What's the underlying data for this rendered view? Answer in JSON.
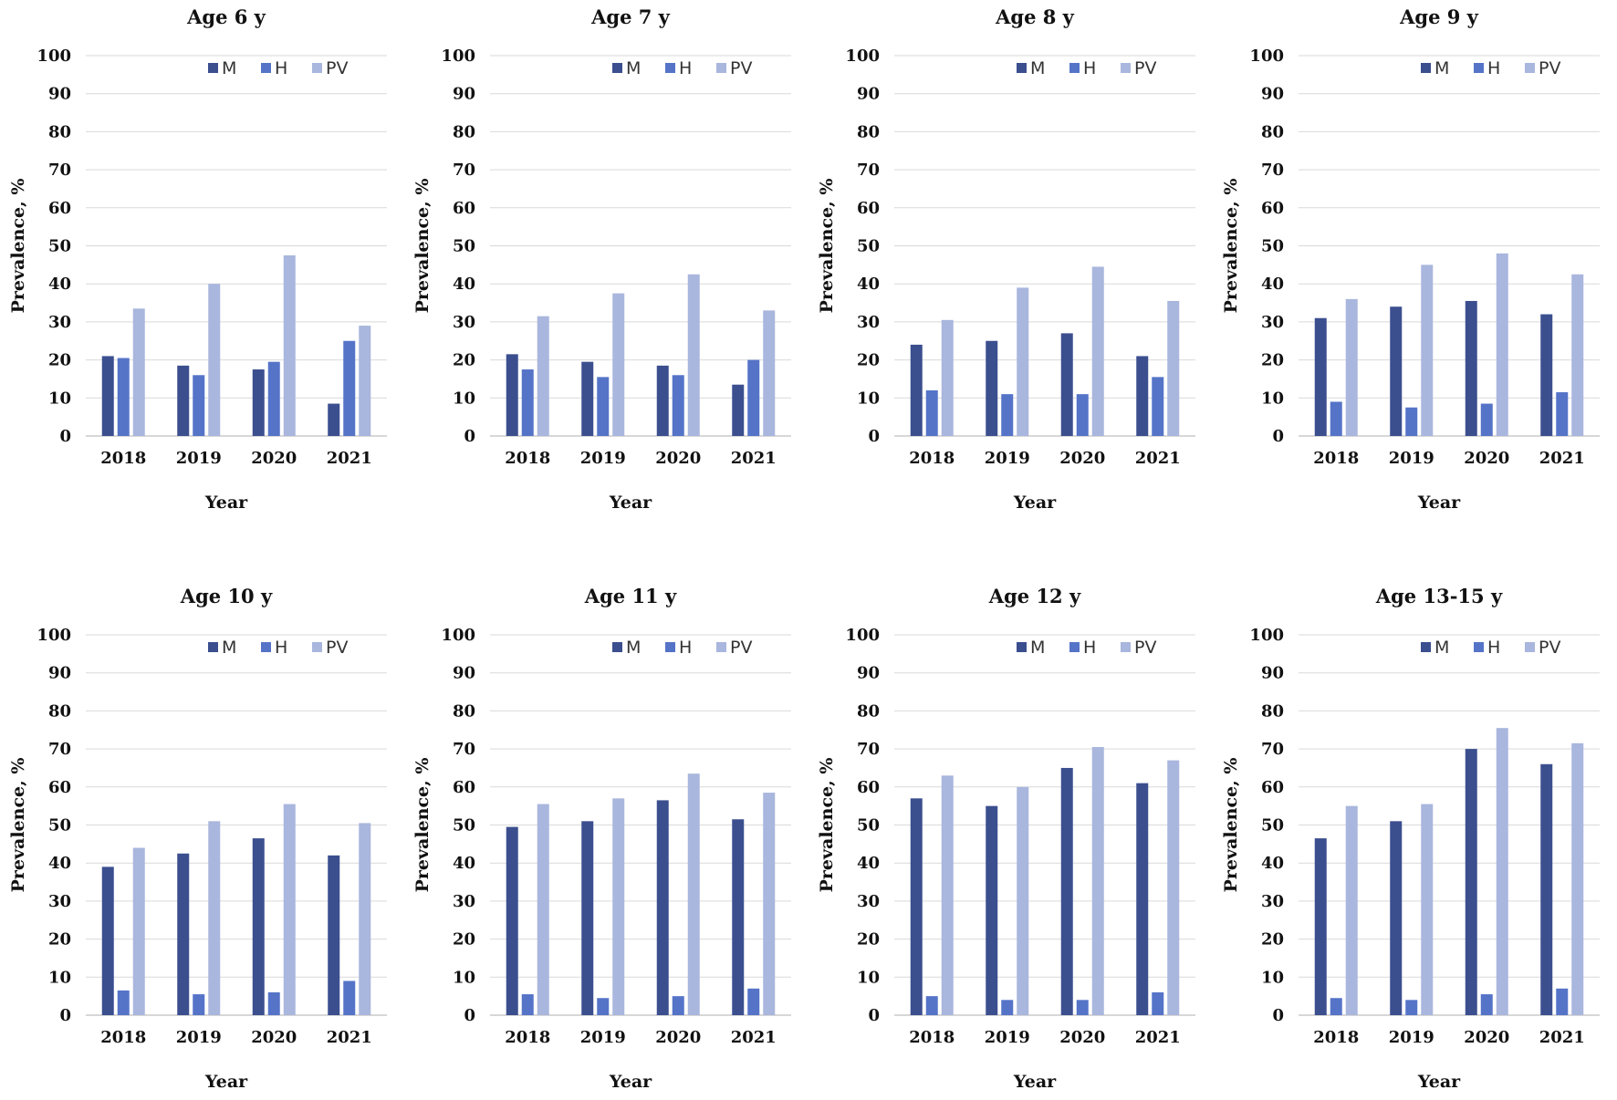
{
  "chart_data": [
    {
      "type": "bar",
      "title": "Age 6 y",
      "categories": [
        "2018",
        "2019",
        "2020",
        "2021"
      ],
      "series": [
        {
          "name": "M",
          "values": [
            21,
            18.5,
            17.5,
            8.5
          ]
        },
        {
          "name": "H",
          "values": [
            20.5,
            16,
            19.5,
            25
          ]
        },
        {
          "name": "PV",
          "values": [
            33.5,
            40,
            47.5,
            29
          ]
        }
      ],
      "xlabel": "Year",
      "ylabel": "Prevalence, %",
      "ylim": [
        0,
        100
      ],
      "yticks": [
        "0",
        "10",
        "20",
        "30",
        "40",
        "50",
        "60",
        "70",
        "80",
        "90",
        "100"
      ],
      "grid": true,
      "legend": "top-right"
    },
    {
      "type": "bar",
      "title": "Age 7 y",
      "categories": [
        "2018",
        "2019",
        "2020",
        "2021"
      ],
      "series": [
        {
          "name": "M",
          "values": [
            21.5,
            19.5,
            18.5,
            13.5
          ]
        },
        {
          "name": "H",
          "values": [
            17.5,
            15.5,
            16,
            20
          ]
        },
        {
          "name": "PV",
          "values": [
            31.5,
            37.5,
            42.5,
            33
          ]
        }
      ],
      "xlabel": "Year",
      "ylabel": "Prevalence, %",
      "ylim": [
        0,
        100
      ],
      "yticks": [
        "0",
        "10",
        "20",
        "30",
        "40",
        "50",
        "60",
        "70",
        "80",
        "90",
        "100"
      ],
      "grid": true,
      "legend": "top-right"
    },
    {
      "type": "bar",
      "title": "Age 8 y",
      "categories": [
        "2018",
        "2019",
        "2020",
        "2021"
      ],
      "series": [
        {
          "name": "M",
          "values": [
            24,
            25,
            27,
            21
          ]
        },
        {
          "name": "H",
          "values": [
            12,
            11,
            11,
            15.5
          ]
        },
        {
          "name": "PV",
          "values": [
            30.5,
            39,
            44.5,
            35.5
          ]
        }
      ],
      "xlabel": "Year",
      "ylabel": "Prevalence, %",
      "ylim": [
        0,
        100
      ],
      "yticks": [
        "0",
        "10",
        "20",
        "30",
        "40",
        "50",
        "60",
        "70",
        "80",
        "90",
        "100"
      ],
      "grid": true,
      "legend": "top-right"
    },
    {
      "type": "bar",
      "title": "Age 9 y",
      "categories": [
        "2018",
        "2019",
        "2020",
        "2021"
      ],
      "series": [
        {
          "name": "M",
          "values": [
            31,
            34,
            35.5,
            32
          ]
        },
        {
          "name": "H",
          "values": [
            9,
            7.5,
            8.5,
            11.5
          ]
        },
        {
          "name": "PV",
          "values": [
            36,
            45,
            48,
            42.5
          ]
        }
      ],
      "xlabel": "Year",
      "ylabel": "Prevalence, %",
      "ylim": [
        0,
        100
      ],
      "yticks": [
        "0",
        "10",
        "20",
        "30",
        "40",
        "50",
        "60",
        "70",
        "80",
        "90",
        "100"
      ],
      "grid": true,
      "legend": "top-right"
    },
    {
      "type": "bar",
      "title": "Age 10 y",
      "categories": [
        "2018",
        "2019",
        "2020",
        "2021"
      ],
      "series": [
        {
          "name": "M",
          "values": [
            39,
            42.5,
            46.5,
            42
          ]
        },
        {
          "name": "H",
          "values": [
            6.5,
            5.5,
            6,
            9
          ]
        },
        {
          "name": "PV",
          "values": [
            44,
            51,
            55.5,
            50.5
          ]
        }
      ],
      "xlabel": "Year",
      "ylabel": "Prevalence, %",
      "ylim": [
        0,
        100
      ],
      "yticks": [
        "0",
        "10",
        "20",
        "30",
        "40",
        "50",
        "60",
        "70",
        "80",
        "90",
        "100"
      ],
      "grid": true,
      "legend": "top-right"
    },
    {
      "type": "bar",
      "title": "Age 11 y",
      "categories": [
        "2018",
        "2019",
        "2020",
        "2021"
      ],
      "series": [
        {
          "name": "M",
          "values": [
            49.5,
            51,
            56.5,
            51.5
          ]
        },
        {
          "name": "H",
          "values": [
            5.5,
            4.5,
            5,
            7
          ]
        },
        {
          "name": "PV",
          "values": [
            55.5,
            57,
            63.5,
            58.5
          ]
        }
      ],
      "xlabel": "Year",
      "ylabel": "Prevalence, %",
      "ylim": [
        0,
        100
      ],
      "yticks": [
        "0",
        "10",
        "20",
        "30",
        "40",
        "50",
        "60",
        "70",
        "80",
        "90",
        "100"
      ],
      "grid": true,
      "legend": "top-right"
    },
    {
      "type": "bar",
      "title": "Age 12 y",
      "categories": [
        "2018",
        "2019",
        "2020",
        "2021"
      ],
      "series": [
        {
          "name": "M",
          "values": [
            57,
            55,
            65,
            61
          ]
        },
        {
          "name": "H",
          "values": [
            5,
            4,
            4,
            6
          ]
        },
        {
          "name": "PV",
          "values": [
            63,
            60,
            70.5,
            67
          ]
        }
      ],
      "xlabel": "Year",
      "ylabel": "Prevalence, %",
      "ylim": [
        0,
        100
      ],
      "yticks": [
        "0",
        "10",
        "20",
        "30",
        "40",
        "50",
        "60",
        "70",
        "80",
        "90",
        "100"
      ],
      "grid": true,
      "legend": "top-right"
    },
    {
      "type": "bar",
      "title": "Age 13-15 y",
      "categories": [
        "2018",
        "2019",
        "2020",
        "2021"
      ],
      "series": [
        {
          "name": "M",
          "values": [
            46.5,
            51,
            70,
            66
          ]
        },
        {
          "name": "H",
          "values": [
            4.5,
            4,
            5.5,
            7
          ]
        },
        {
          "name": "PV",
          "values": [
            55,
            55.5,
            75.5,
            71.5
          ]
        }
      ],
      "xlabel": "Year",
      "ylabel": "Prevalence, %",
      "ylim": [
        0,
        100
      ],
      "yticks": [
        "0",
        "10",
        "20",
        "30",
        "40",
        "50",
        "60",
        "70",
        "80",
        "90",
        "100"
      ],
      "grid": true,
      "legend": "top-right"
    }
  ],
  "colors": {
    "M": "#3b4f8f",
    "H": "#5574c8",
    "PV": "#a9b6dd"
  }
}
